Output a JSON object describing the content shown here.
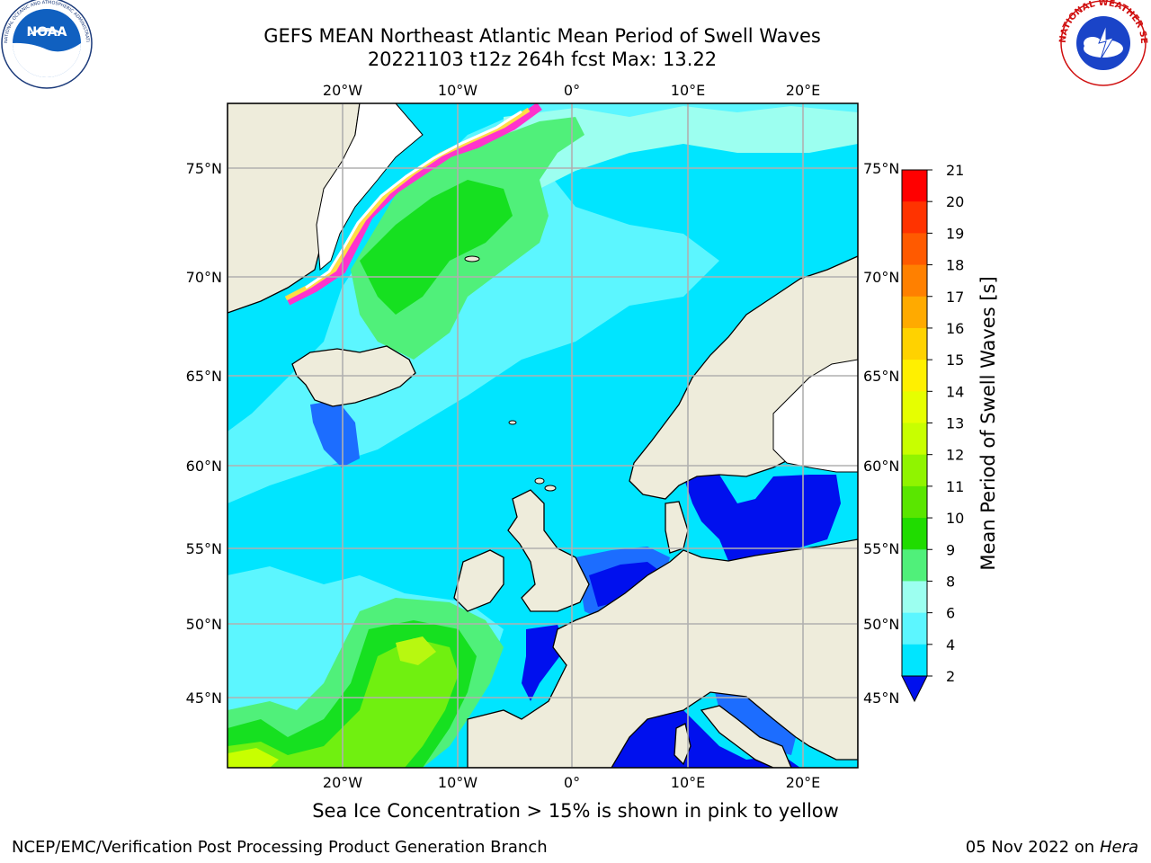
{
  "header": {
    "title_line1": "GEFS MEAN Northeast Atlantic Mean Period of Swell Waves",
    "title_line2": "20221103 t12z 264h fcst   Max: 13.22"
  },
  "logos": {
    "noaa_text": "NOAA",
    "noaa_ring": "NATIONAL OCEANIC AND ATMOSPHERIC ADMINISTRATION · U.S. DEPARTMENT OF COMMERCE",
    "nws_ring": "NATIONAL WEATHER SERVICE"
  },
  "map": {
    "lon_labels_top": [
      "20°W",
      "10°W",
      "0°",
      "10°E",
      "20°E"
    ],
    "lon_labels_bottom": [
      "20°W",
      "10°W",
      "0°",
      "10°E",
      "20°E"
    ],
    "lat_labels_left": [
      "75°N",
      "70°N",
      "65°N",
      "60°N",
      "55°N",
      "50°N",
      "45°N"
    ],
    "lat_labels_right": [
      "75°N",
      "70°N",
      "65°N",
      "60°N",
      "55°N",
      "50°N",
      "45°N"
    ],
    "colors": {
      "land": "#eeecdb",
      "ocean_main": "#00e5ff",
      "ocean_light": "#5cf6ff",
      "swell_9": "#80ffdc",
      "swell_10": "#50f07a",
      "swell_11": "#16e020",
      "swell_12": "#70f010",
      "swell_13": "#c8ff00",
      "low_period": "#0010ee",
      "low_period_2": "#1c6dff",
      "ice_pink": "#ff33cc",
      "ice_yellow": "#ffdd44",
      "grid": "#b0b0b0"
    }
  },
  "colorbar": {
    "title": "Mean Period of Swell Waves [s]",
    "ticks": [
      "21",
      "20",
      "19",
      "18",
      "17",
      "16",
      "15",
      "14",
      "13",
      "12",
      "11",
      "10",
      "9",
      "8",
      "6",
      "4",
      "2"
    ],
    "colors": [
      "#ff0000",
      "#ff3300",
      "#ff5a00",
      "#ff8000",
      "#ffaa00",
      "#ffd200",
      "#fff000",
      "#e6ff00",
      "#c8ff00",
      "#90f400",
      "#5ae600",
      "#20dc00",
      "#50f07a",
      "#9cfff0",
      "#5cf6ff",
      "#00e5ff",
      "#1c6dff",
      "#0010ee"
    ]
  },
  "caption": "Sea Ice Concentration > 15% is shown in pink to yellow",
  "footer": {
    "left": "NCEP/EMC/Verification Post Processing Product Generation Branch",
    "right_date": "05 Nov 2022 on",
    "right_host": "Hera"
  }
}
